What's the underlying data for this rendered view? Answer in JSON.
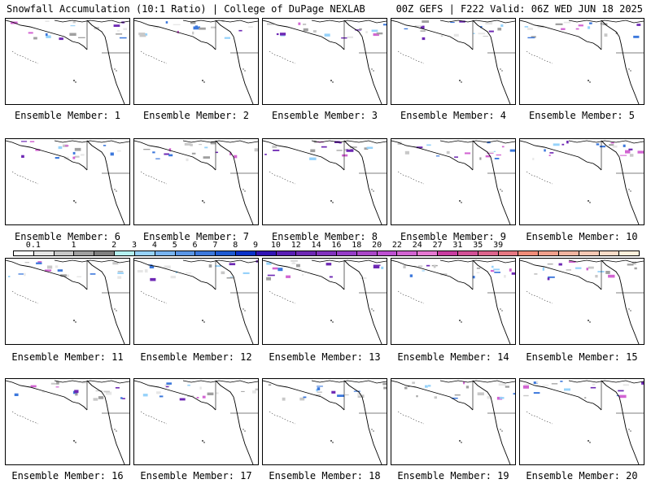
{
  "header": {
    "left": "Snowfall Accumulation (10:1 Ratio) | College of DuPage NEXLAB",
    "right": "00Z GEFS | F222 Valid: 06Z WED JUN 18 2025"
  },
  "panels": [
    {
      "label": "Ensemble Member: 1"
    },
    {
      "label": "Ensemble Member: 2"
    },
    {
      "label": "Ensemble Member: 3"
    },
    {
      "label": "Ensemble Member: 4"
    },
    {
      "label": "Ensemble Member: 5"
    },
    {
      "label": "Ensemble Member: 6"
    },
    {
      "label": "Ensemble Member: 7"
    },
    {
      "label": "Ensemble Member: 8"
    },
    {
      "label": "Ensemble Member: 9"
    },
    {
      "label": "Ensemble Member: 10"
    },
    {
      "label": "Ensemble Member: 11"
    },
    {
      "label": "Ensemble Member: 12"
    },
    {
      "label": "Ensemble Member: 13"
    },
    {
      "label": "Ensemble Member: 14"
    },
    {
      "label": "Ensemble Member: 15"
    },
    {
      "label": "Ensemble Member: 16"
    },
    {
      "label": "Ensemble Member: 17"
    },
    {
      "label": "Ensemble Member: 18"
    },
    {
      "label": "Ensemble Member: 19"
    },
    {
      "label": "Ensemble Member: 20"
    }
  ],
  "colorbar": {
    "labels": [
      "0.1",
      "1",
      "2",
      "3",
      "4",
      "5",
      "6",
      "7",
      "8",
      "9",
      "10",
      "12",
      "14",
      "16",
      "18",
      "20",
      "22",
      "24",
      "27",
      "31",
      "35",
      "39"
    ],
    "colors": [
      "#ffffff",
      "#e6e6e6",
      "#c8c8c8",
      "#a0a0a0",
      "#808080",
      "#b4f0f0",
      "#96d2fa",
      "#78b4f0",
      "#5a96e6",
      "#3c78dc",
      "#1e5ad2",
      "#0a32c8",
      "#3214b4",
      "#5a1eb4",
      "#6e28b4",
      "#8232be",
      "#963cc8",
      "#aa46c8",
      "#be50d2",
      "#d264d2",
      "#e678d2",
      "#c83ca0",
      "#d25096",
      "#dc648c",
      "#e67882",
      "#f08c78",
      "#f0a08c",
      "#f0b4a0",
      "#f5c8b4",
      "#fadcc8",
      "#fff0dc"
    ]
  }
}
